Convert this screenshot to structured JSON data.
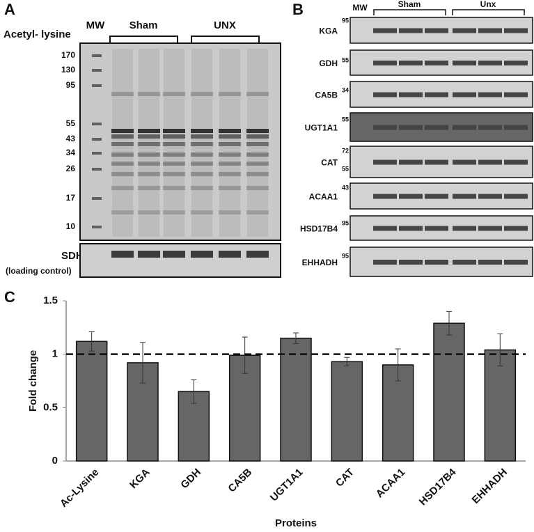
{
  "panel_a": {
    "label": "A",
    "title": "Acetyl- lysine",
    "mw": "MW",
    "groups": [
      "Sham",
      "UNX"
    ],
    "markers": [
      "170",
      "130",
      "95",
      "55",
      "43",
      "34",
      "26",
      "17",
      "10"
    ],
    "loading": {
      "name": "SDH",
      "note": "(loading control)"
    }
  },
  "panel_b": {
    "label": "B",
    "mw": "MW",
    "groups": [
      "Sham",
      "Unx"
    ],
    "blots": [
      {
        "name": "KGA",
        "markers": [
          "95"
        ]
      },
      {
        "name": "GDH",
        "markers": [
          "55"
        ]
      },
      {
        "name": "CA5B",
        "markers": [
          "34"
        ]
      },
      {
        "name": "UGT1A1",
        "markers": [
          "55"
        ]
      },
      {
        "name": "CAT",
        "markers": [
          "72",
          "55"
        ]
      },
      {
        "name": "ACAA1",
        "markers": [
          "43"
        ]
      },
      {
        "name": "HSD17B4",
        "markers": [
          "95"
        ]
      },
      {
        "name": "EHHADH",
        "markers": [
          "95"
        ]
      }
    ]
  },
  "chart_data": {
    "type": "bar",
    "panel": "C",
    "categories": [
      "Ac-Lysine",
      "KGA",
      "GDH",
      "CA5B",
      "UGT1A1",
      "CAT",
      "ACAA1",
      "HSD17B4",
      "EHHADH"
    ],
    "values": [
      1.12,
      0.92,
      0.65,
      0.99,
      1.15,
      0.93,
      0.9,
      1.29,
      1.04
    ],
    "errors": [
      0.09,
      0.19,
      0.11,
      0.17,
      0.05,
      0.04,
      0.15,
      0.11,
      0.15
    ],
    "color": "#666666",
    "ylim": [
      0,
      1.5
    ],
    "yticks": [
      0,
      0.5,
      1,
      1.5
    ],
    "ylabel": "Fold change",
    "xlabel": "Proteins",
    "reference_line": 1
  }
}
